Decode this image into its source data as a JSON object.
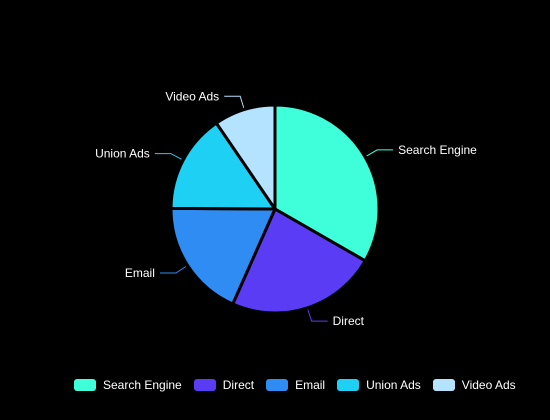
{
  "chart_data": {
    "type": "pie",
    "categories": [
      "Search Engine",
      "Direct",
      "Email",
      "Union Ads",
      "Video Ads"
    ],
    "values": [
      1048,
      735,
      580,
      484,
      300
    ],
    "colors": [
      "#3effd9",
      "#5a3cf5",
      "#2f8cf2",
      "#1fd0f5",
      "#b3e3ff"
    ],
    "title": "",
    "legend_placement": "bottom-right",
    "start_angle_deg": 90,
    "direction": "clockwise",
    "slice_border_color": "#000000",
    "label_color": "#ffffff",
    "background": "#000000"
  }
}
